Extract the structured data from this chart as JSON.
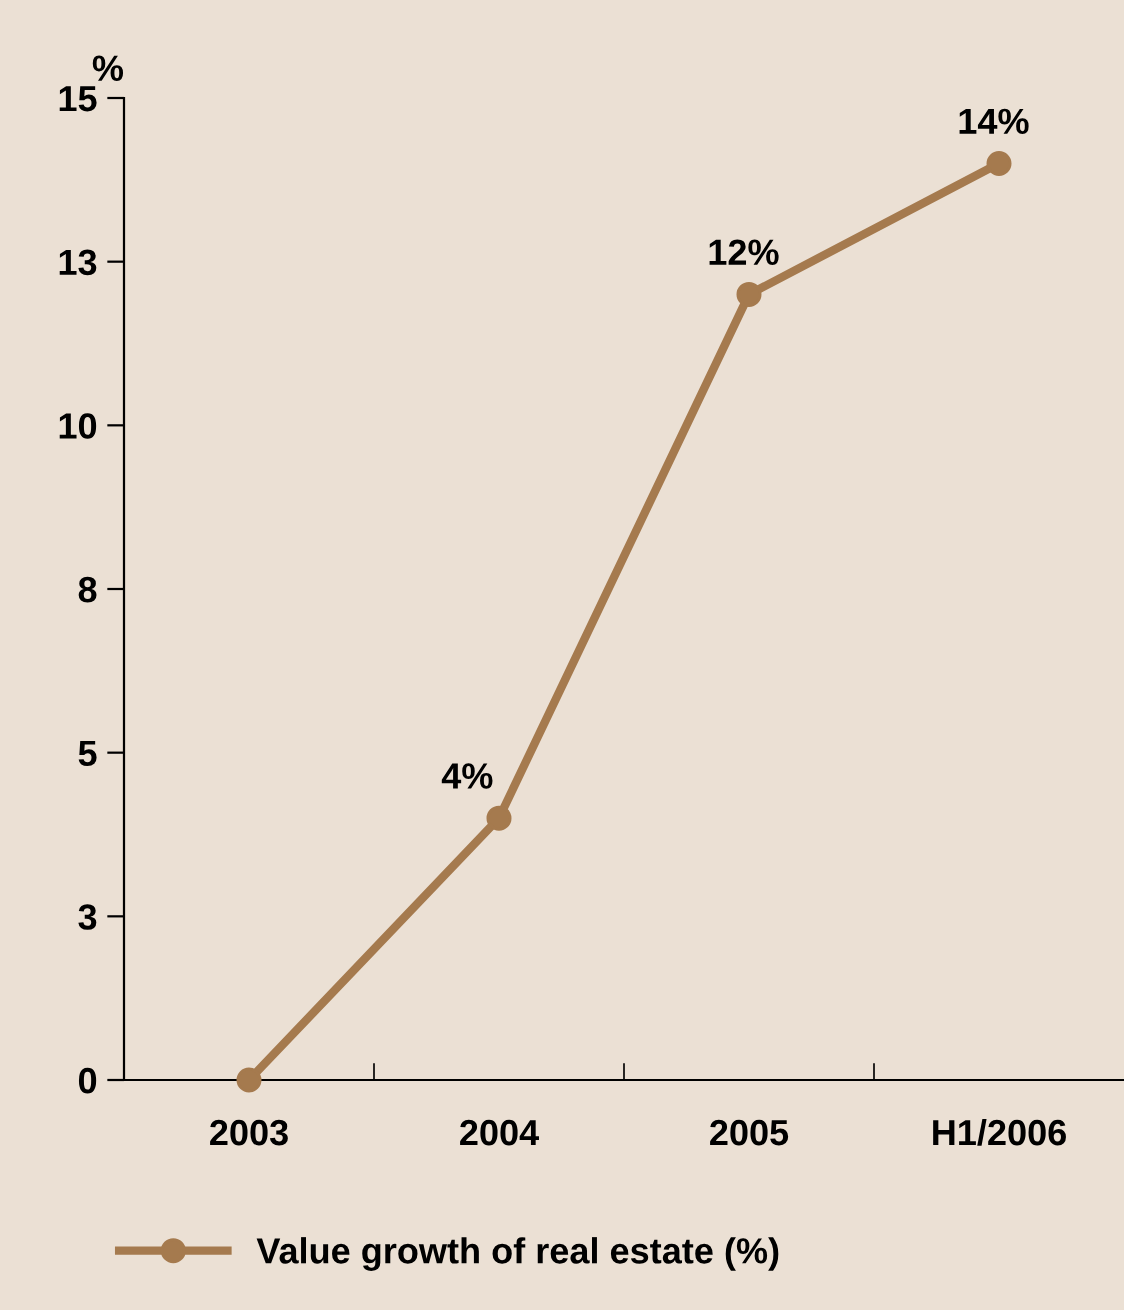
{
  "chart_data": {
    "type": "line",
    "ylabel": "%",
    "categories": [
      "2003",
      "2004",
      "2005",
      "H1/2006"
    ],
    "series": [
      {
        "name": "Value growth of real estate (%)",
        "color": "#a57a4e",
        "values": [
          0,
          4,
          12,
          14
        ],
        "value_labels": [
          null,
          "4%",
          "12%",
          "14%"
        ]
      }
    ],
    "ylim": [
      0,
      15
    ],
    "yticks": [
      0,
      {
        "value": 2.5,
        "label": "3"
      },
      5,
      {
        "value": 7.5,
        "label": "8"
      },
      10,
      {
        "value": 12.5,
        "label": "13"
      },
      15
    ],
    "marker": "circle",
    "line_style": "solid",
    "grid": false,
    "legend": "bottom"
  }
}
